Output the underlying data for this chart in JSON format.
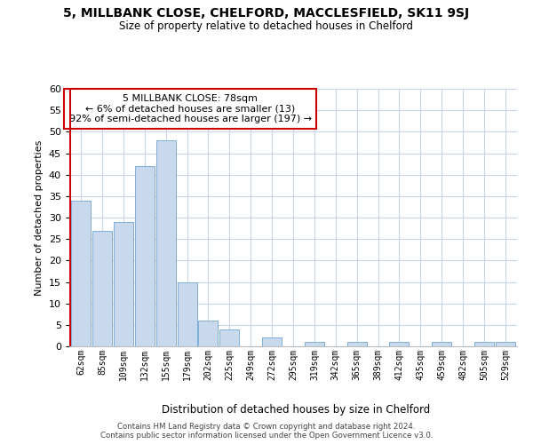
{
  "title": "5, MILLBANK CLOSE, CHELFORD, MACCLESFIELD, SK11 9SJ",
  "subtitle": "Size of property relative to detached houses in Chelford",
  "xlabel": "Distribution of detached houses by size in Chelford",
  "ylabel": "Number of detached properties",
  "bar_labels": [
    "62sqm",
    "85sqm",
    "109sqm",
    "132sqm",
    "155sqm",
    "179sqm",
    "202sqm",
    "225sqm",
    "249sqm",
    "272sqm",
    "295sqm",
    "319sqm",
    "342sqm",
    "365sqm",
    "389sqm",
    "412sqm",
    "435sqm",
    "459sqm",
    "482sqm",
    "505sqm",
    "529sqm"
  ],
  "bar_values": [
    34,
    27,
    29,
    42,
    48,
    15,
    6,
    4,
    0,
    2,
    0,
    1,
    0,
    1,
    0,
    1,
    0,
    1,
    0,
    1,
    1
  ],
  "bar_color": "#c8d9ee",
  "bar_edge_color": "#7fb0d8",
  "vline_color": "#cc0000",
  "ylim": [
    0,
    60
  ],
  "yticks": [
    0,
    5,
    10,
    15,
    20,
    25,
    30,
    35,
    40,
    45,
    50,
    55,
    60
  ],
  "annotation_line1": "5 MILLBANK CLOSE: 78sqm",
  "annotation_line2": "← 6% of detached houses are smaller (13)",
  "annotation_line3": "92% of semi-detached houses are larger (197) →",
  "annotation_box_color": "#ffffff",
  "annotation_box_edge": "#cc0000",
  "footer_line1": "Contains HM Land Registry data © Crown copyright and database right 2024.",
  "footer_line2": "Contains public sector information licensed under the Open Government Licence v3.0.",
  "bg_color": "#ffffff",
  "grid_color": "#c8d4e8"
}
